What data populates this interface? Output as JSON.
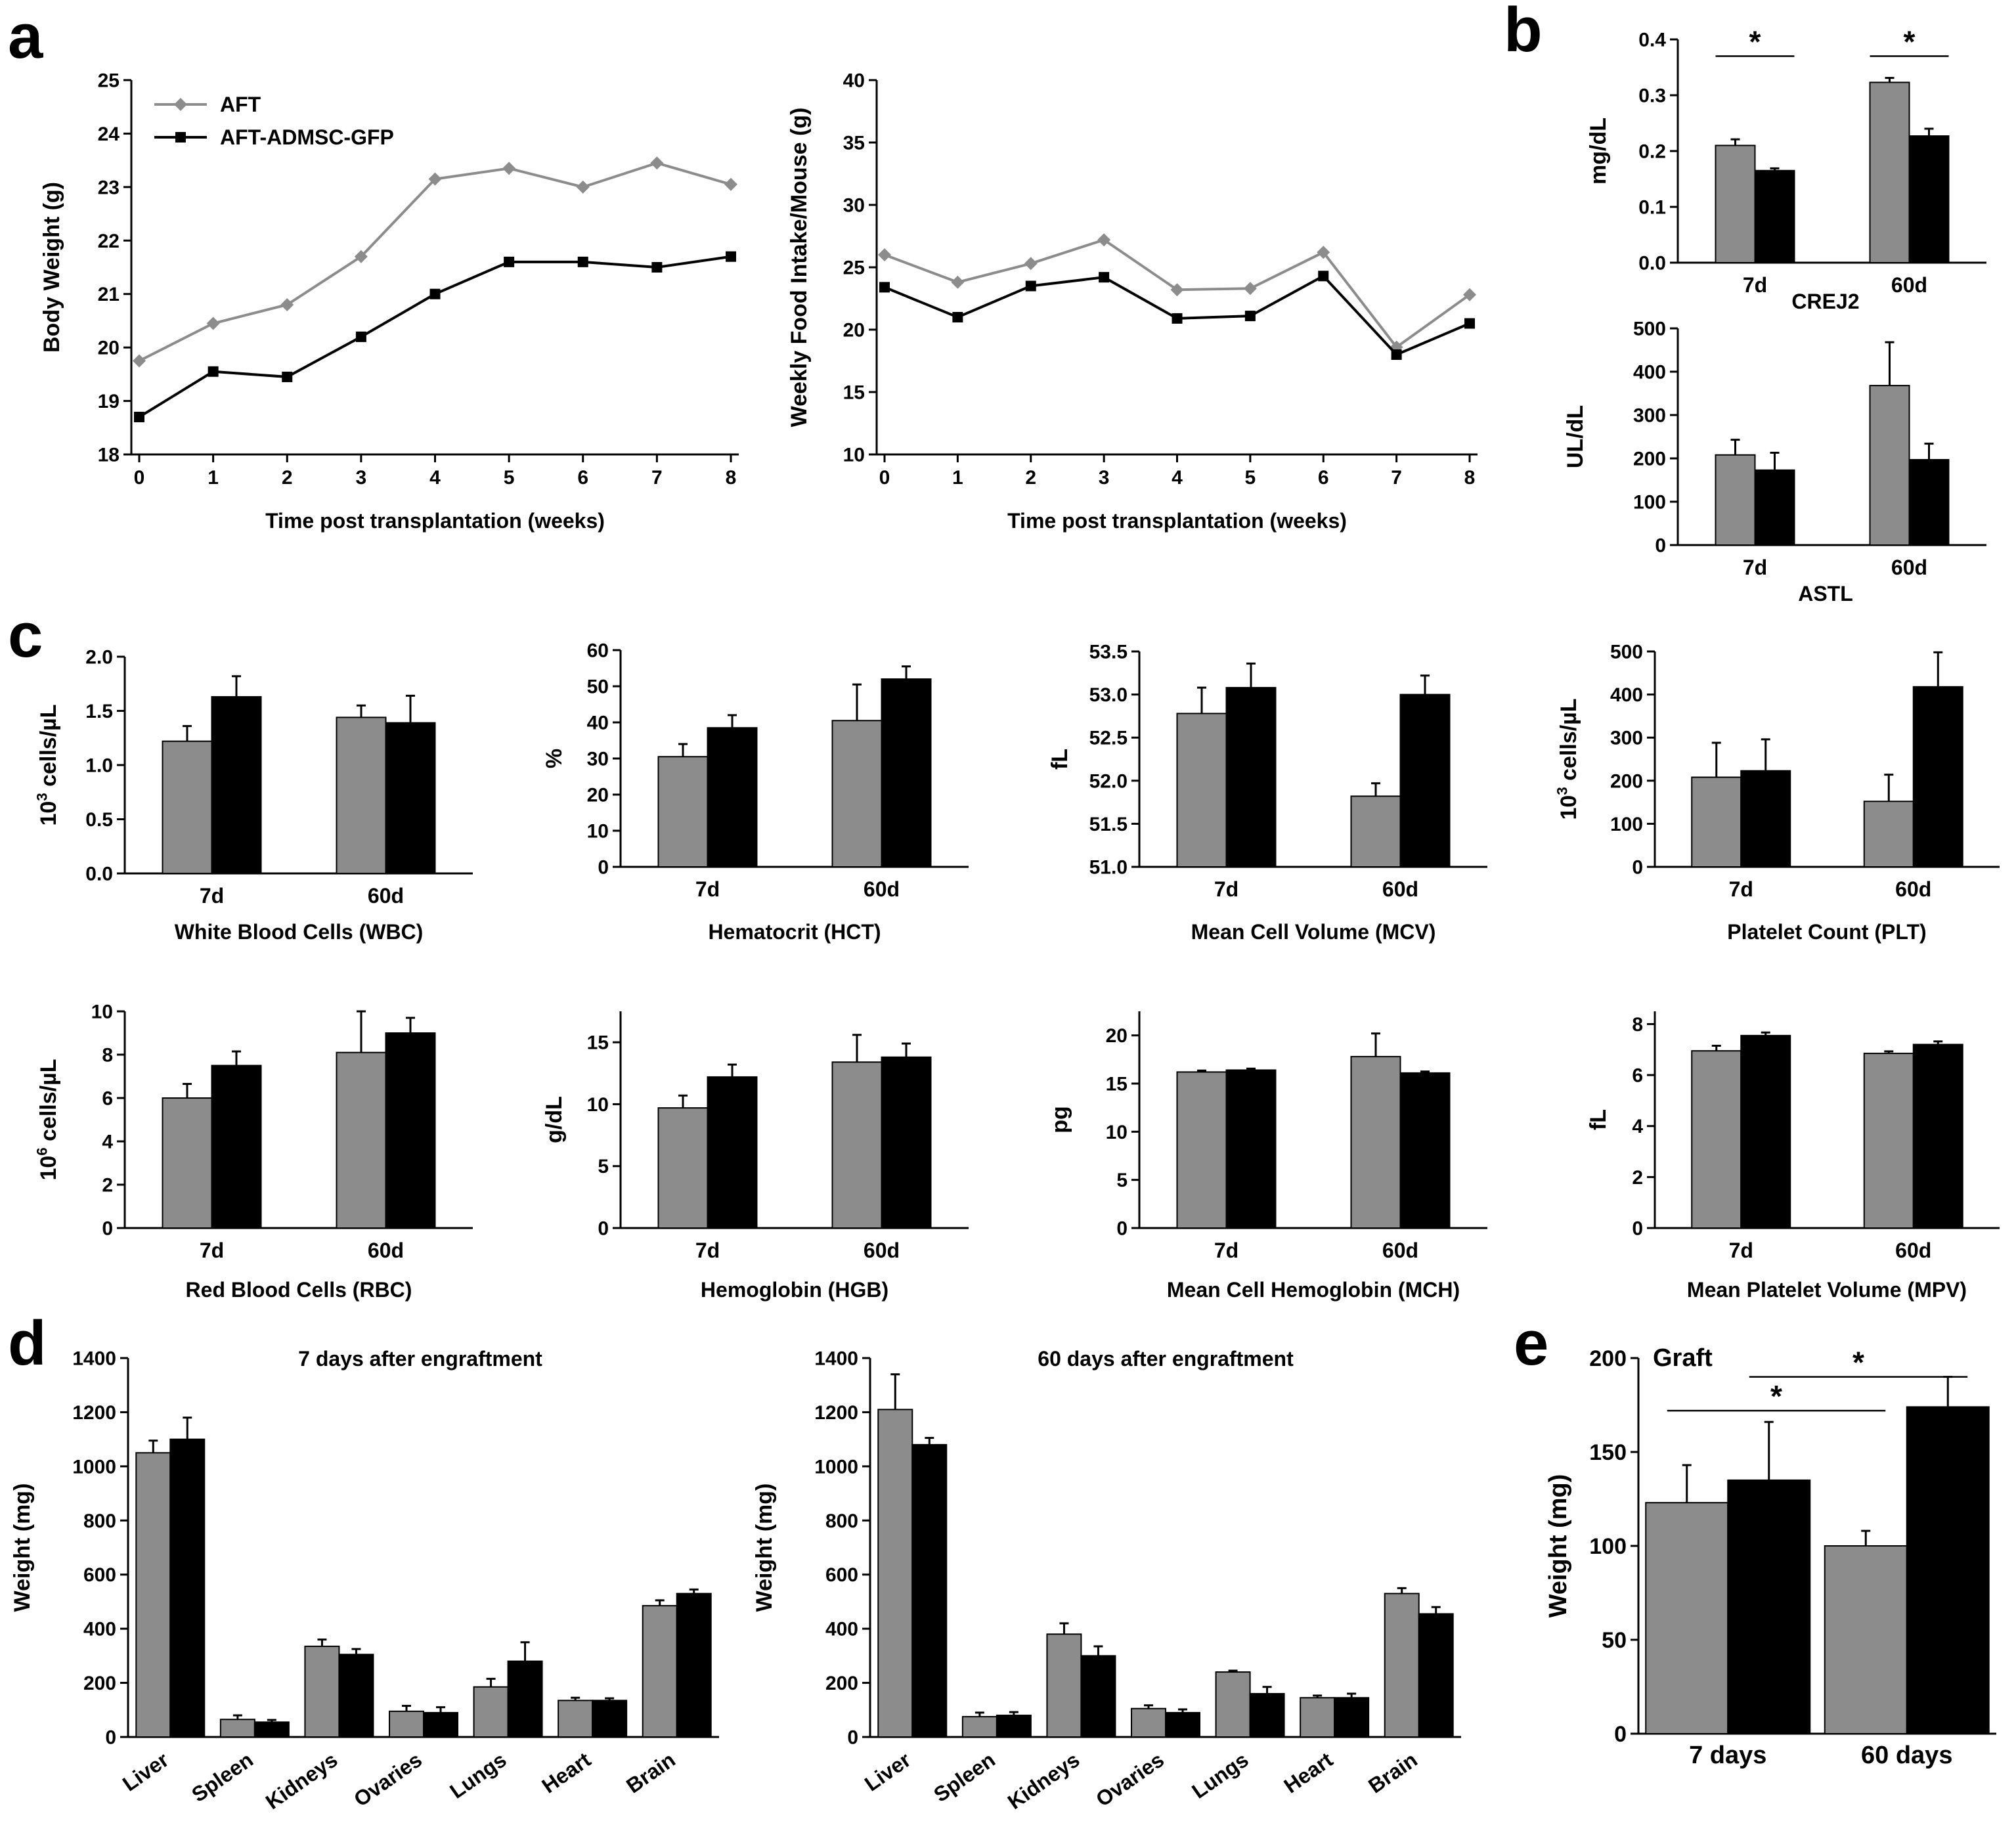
{
  "panel_letters": [
    "a",
    "b",
    "c",
    "d",
    "e"
  ],
  "colors": {
    "AFT": "#8c8c8c",
    "AFT-ADMSC-GFP": "#000000"
  },
  "chart_data": [
    {
      "id": "a-bw",
      "panel": "a",
      "type": "line",
      "xlabel": "Time post transplantation (weeks)",
      "ylabel": "Body Weight (g)",
      "x": [
        0,
        1,
        2,
        3,
        4,
        5,
        6,
        7,
        8
      ],
      "xlim": [
        0,
        8
      ],
      "ylim": [
        18,
        25
      ],
      "xticks": [
        0,
        1,
        2,
        3,
        4,
        5,
        6,
        7,
        8
      ],
      "yticks": [
        18,
        19,
        20,
        21,
        22,
        23,
        24,
        25
      ],
      "legend": "top-left",
      "series": [
        {
          "name": "AFT",
          "marker": "diamond",
          "values": [
            19.75,
            20.45,
            20.8,
            21.7,
            23.15,
            23.35,
            23.0,
            23.45,
            23.05
          ]
        },
        {
          "name": "AFT-ADMSC-GFP",
          "marker": "square",
          "values": [
            18.7,
            19.55,
            19.45,
            20.2,
            21.0,
            21.6,
            21.6,
            21.5,
            21.7
          ]
        }
      ]
    },
    {
      "id": "a-fi",
      "panel": "a",
      "type": "line",
      "xlabel": "Time post transplantation (weeks)",
      "ylabel": "Weekly Food Intake/Mouse (g)",
      "x": [
        0,
        1,
        2,
        3,
        4,
        5,
        6,
        7,
        8
      ],
      "xlim": [
        0,
        8
      ],
      "ylim": [
        10,
        40
      ],
      "xticks": [
        0,
        1,
        2,
        3,
        4,
        5,
        6,
        7,
        8
      ],
      "yticks": [
        10,
        15,
        20,
        25,
        30,
        35,
        40
      ],
      "series": [
        {
          "name": "AFT",
          "values": [
            26.0,
            23.8,
            25.3,
            27.2,
            23.2,
            23.3,
            26.2,
            18.6,
            22.8
          ]
        },
        {
          "name": "AFT-ADMSC-GFP",
          "values": [
            23.4,
            21.0,
            23.5,
            24.2,
            20.9,
            21.1,
            24.3,
            18.0,
            20.5
          ]
        }
      ]
    },
    {
      "id": "b-crej2",
      "panel": "b",
      "type": "bar",
      "xlabel": "CREJ2",
      "ylabel": "mg/dL",
      "categories": [
        "7d",
        "60d"
      ],
      "ylim": [
        0,
        0.4
      ],
      "yticks": [
        0,
        0.1,
        0.2,
        0.3,
        0.4
      ],
      "ytick_labels": [
        "0.0",
        "0.1",
        "0.2",
        "0.3",
        "0.4"
      ],
      "series": [
        {
          "name": "AFT",
          "values": [
            0.21,
            0.323
          ],
          "errors": [
            0.011,
            0.008
          ]
        },
        {
          "name": "AFT-ADMSC-GFP",
          "values": [
            0.165,
            0.227
          ],
          "errors": [
            0.004,
            0.013
          ]
        }
      ],
      "significance": [
        {
          "label": "*",
          "from": [
            0,
            0
          ],
          "to": [
            0,
            1
          ],
          "y": 0.37
        },
        {
          "label": "*",
          "from": [
            1,
            0
          ],
          "to": [
            1,
            1
          ],
          "y": 0.37
        }
      ]
    },
    {
      "id": "b-astl",
      "panel": "b",
      "type": "bar",
      "xlabel": "ASTL",
      "ylabel": "UL/dL",
      "categories": [
        "7d",
        "60d"
      ],
      "ylim": [
        0,
        500
      ],
      "yticks": [
        0,
        100,
        200,
        300,
        400,
        500
      ],
      "series": [
        {
          "name": "AFT",
          "values": [
            208,
            368
          ],
          "errors": [
            35,
            100
          ]
        },
        {
          "name": "AFT-ADMSC-GFP",
          "values": [
            173,
            197
          ],
          "errors": [
            40,
            37
          ]
        }
      ]
    },
    {
      "id": "c-wbc",
      "panel": "c",
      "type": "bar",
      "xlabel": "White Blood Cells (WBC)",
      "ylabel": "10^3 cells/µL",
      "ylabel_parts": [
        "10",
        "3",
        " cells/µL"
      ],
      "categories": [
        "7d",
        "60d"
      ],
      "ylim": [
        0,
        2.0
      ],
      "yticks": [
        0,
        0.5,
        1.0,
        1.5,
        2.0
      ],
      "ytick_labels": [
        "0.0",
        "0.5",
        "1.0",
        "1.5",
        "2.0"
      ],
      "series": [
        {
          "name": "AFT",
          "values": [
            1.22,
            1.44
          ],
          "errors": [
            0.14,
            0.11
          ]
        },
        {
          "name": "AFT-ADMSC-GFP",
          "values": [
            1.63,
            1.39
          ],
          "errors": [
            0.19,
            0.25
          ]
        }
      ]
    },
    {
      "id": "c-hct",
      "panel": "c",
      "type": "bar",
      "xlabel": "Hematocrit (HCT)",
      "ylabel": "%",
      "categories": [
        "7d",
        "60d"
      ],
      "ylim": [
        0,
        60
      ],
      "yticks": [
        0,
        10,
        20,
        30,
        40,
        50,
        60
      ],
      "series": [
        {
          "name": "AFT",
          "values": [
            30.5,
            40.5
          ],
          "errors": [
            3.5,
            10
          ]
        },
        {
          "name": "AFT-ADMSC-GFP",
          "values": [
            38.5,
            52.0
          ],
          "errors": [
            3.5,
            3.5
          ]
        }
      ]
    },
    {
      "id": "c-mcv",
      "panel": "c",
      "type": "bar",
      "xlabel": "Mean Cell Volume (MCV)",
      "ylabel": "fL",
      "categories": [
        "7d",
        "60d"
      ],
      "ylim": [
        51.0,
        53.5
      ],
      "yticks": [
        51.0,
        51.5,
        52.0,
        52.5,
        53.0,
        53.5
      ],
      "ytick_labels": [
        "51.0",
        "51.5",
        "52.0",
        "52.5",
        "53.0",
        "53.5"
      ],
      "series": [
        {
          "name": "AFT",
          "values": [
            52.78,
            51.82
          ],
          "errors": [
            0.3,
            0.15
          ]
        },
        {
          "name": "AFT-ADMSC-GFP",
          "values": [
            53.08,
            53.0
          ],
          "errors": [
            0.28,
            0.22
          ]
        }
      ]
    },
    {
      "id": "c-plt",
      "panel": "c",
      "type": "bar",
      "xlabel": "Platelet Count (PLT)",
      "ylabel": "10^3 cells/µL",
      "ylabel_parts": [
        "10",
        "3",
        " cells/µL"
      ],
      "categories": [
        "7d",
        "60d"
      ],
      "ylim": [
        0,
        500
      ],
      "yticks": [
        0,
        100,
        200,
        300,
        400,
        500
      ],
      "series": [
        {
          "name": "AFT",
          "values": [
            208,
            152
          ],
          "errors": [
            80,
            62
          ]
        },
        {
          "name": "AFT-ADMSC-GFP",
          "values": [
            223,
            418
          ],
          "errors": [
            73,
            80
          ]
        }
      ]
    },
    {
      "id": "c-rbc",
      "panel": "c",
      "type": "bar",
      "xlabel": "Red Blood Cells (RBC)",
      "ylabel": "10^6 cells/µL",
      "ylabel_parts": [
        "10",
        "6",
        " cells/µL"
      ],
      "categories": [
        "7d",
        "60d"
      ],
      "ylim": [
        0,
        10
      ],
      "yticks": [
        0,
        2,
        4,
        6,
        8,
        10
      ],
      "series": [
        {
          "name": "AFT",
          "values": [
            6.0,
            8.1
          ],
          "errors": [
            0.65,
            1.9
          ]
        },
        {
          "name": "AFT-ADMSC-GFP",
          "values": [
            7.5,
            9.0
          ],
          "errors": [
            0.65,
            0.7
          ]
        }
      ]
    },
    {
      "id": "c-hgb",
      "panel": "c",
      "type": "bar",
      "xlabel": "Hemoglobin (HGB)",
      "ylabel": "g/dL",
      "categories": [
        "7d",
        "60d"
      ],
      "ylim": [
        0,
        17.5
      ],
      "yticks": [
        0,
        5,
        10,
        15
      ],
      "series": [
        {
          "name": "AFT",
          "values": [
            9.7,
            13.4
          ],
          "errors": [
            1.0,
            2.2
          ]
        },
        {
          "name": "AFT-ADMSC-GFP",
          "values": [
            12.2,
            13.8
          ],
          "errors": [
            1.0,
            1.1
          ]
        }
      ]
    },
    {
      "id": "c-mch",
      "panel": "c",
      "type": "bar",
      "xlabel": "Mean Cell Hemoglobin (MCH)",
      "ylabel": "pg",
      "categories": [
        "7d",
        "60d"
      ],
      "ylim": [
        0,
        22.5
      ],
      "yticks": [
        0,
        5,
        10,
        15,
        20
      ],
      "series": [
        {
          "name": "AFT",
          "values": [
            16.2,
            17.8
          ],
          "errors": [
            0.15,
            2.4
          ]
        },
        {
          "name": "AFT-ADMSC-GFP",
          "values": [
            16.4,
            16.1
          ],
          "errors": [
            0.15,
            0.15
          ]
        }
      ]
    },
    {
      "id": "c-mpv",
      "panel": "c",
      "type": "bar",
      "xlabel": "Mean Platelet Volume (MPV)",
      "ylabel": "fL",
      "categories": [
        "7d",
        "60d"
      ],
      "ylim": [
        0,
        8.5
      ],
      "yticks": [
        0,
        2,
        4,
        6,
        8
      ],
      "series": [
        {
          "name": "AFT",
          "values": [
            6.95,
            6.85
          ],
          "errors": [
            0.2,
            0.08
          ]
        },
        {
          "name": "AFT-ADMSC-GFP",
          "values": [
            7.55,
            7.2
          ],
          "errors": [
            0.12,
            0.12
          ]
        }
      ]
    },
    {
      "id": "d-7",
      "panel": "d",
      "type": "bar",
      "title": "7 days after engraftment",
      "ylabel": "Weight (mg)",
      "categories": [
        "Liver",
        "Spleen",
        "Kidneys",
        "Ovaries",
        "Lungs",
        "Heart",
        "Brain"
      ],
      "ylim": [
        0,
        1400
      ],
      "yticks": [
        0,
        200,
        400,
        600,
        800,
        1000,
        1200,
        1400
      ],
      "series": [
        {
          "name": "AFT",
          "values": [
            1050,
            65,
            335,
            95,
            185,
            135,
            485
          ],
          "errors": [
            45,
            15,
            25,
            20,
            30,
            10,
            20
          ]
        },
        {
          "name": "AFT-ADMSC-GFP",
          "values": [
            1100,
            55,
            305,
            90,
            280,
            135,
            530
          ],
          "errors": [
            80,
            8,
            20,
            20,
            70,
            8,
            15
          ]
        }
      ]
    },
    {
      "id": "d-60",
      "panel": "d",
      "type": "bar",
      "title": "60 days after engraftment",
      "ylabel": "Weight (mg)",
      "categories": [
        "Liver",
        "Spleen",
        "Kidneys",
        "Ovaries",
        "Lungs",
        "Heart",
        "Brain"
      ],
      "ylim": [
        0,
        1400
      ],
      "yticks": [
        0,
        200,
        400,
        600,
        800,
        1000,
        1200,
        1400
      ],
      "series": [
        {
          "name": "AFT",
          "values": [
            1210,
            75,
            380,
            105,
            240,
            145,
            530
          ],
          "errors": [
            130,
            15,
            40,
            12,
            5,
            8,
            20
          ]
        },
        {
          "name": "AFT-ADMSC-GFP",
          "values": [
            1080,
            80,
            300,
            90,
            160,
            145,
            455
          ],
          "errors": [
            25,
            12,
            35,
            12,
            25,
            15,
            25
          ]
        }
      ]
    },
    {
      "id": "e-graft",
      "panel": "e",
      "type": "bar",
      "annotation": "Graft",
      "ylabel": "Weight (mg)",
      "categories": [
        "7 days",
        "60 days"
      ],
      "ylim": [
        0,
        200
      ],
      "yticks": [
        0,
        50,
        100,
        150,
        200
      ],
      "series": [
        {
          "name": "AFT",
          "values": [
            123,
            100
          ],
          "errors": [
            20,
            8
          ]
        },
        {
          "name": "AFT-ADMSC-GFP",
          "values": [
            135,
            174
          ],
          "errors": [
            31,
            16
          ]
        }
      ],
      "significance": [
        {
          "label": "*",
          "from": [
            0,
            0
          ],
          "to": [
            1,
            0
          ],
          "y": 172
        },
        {
          "label": "*",
          "from": [
            0,
            1
          ],
          "to": [
            1,
            1
          ],
          "y": 190
        }
      ]
    }
  ]
}
